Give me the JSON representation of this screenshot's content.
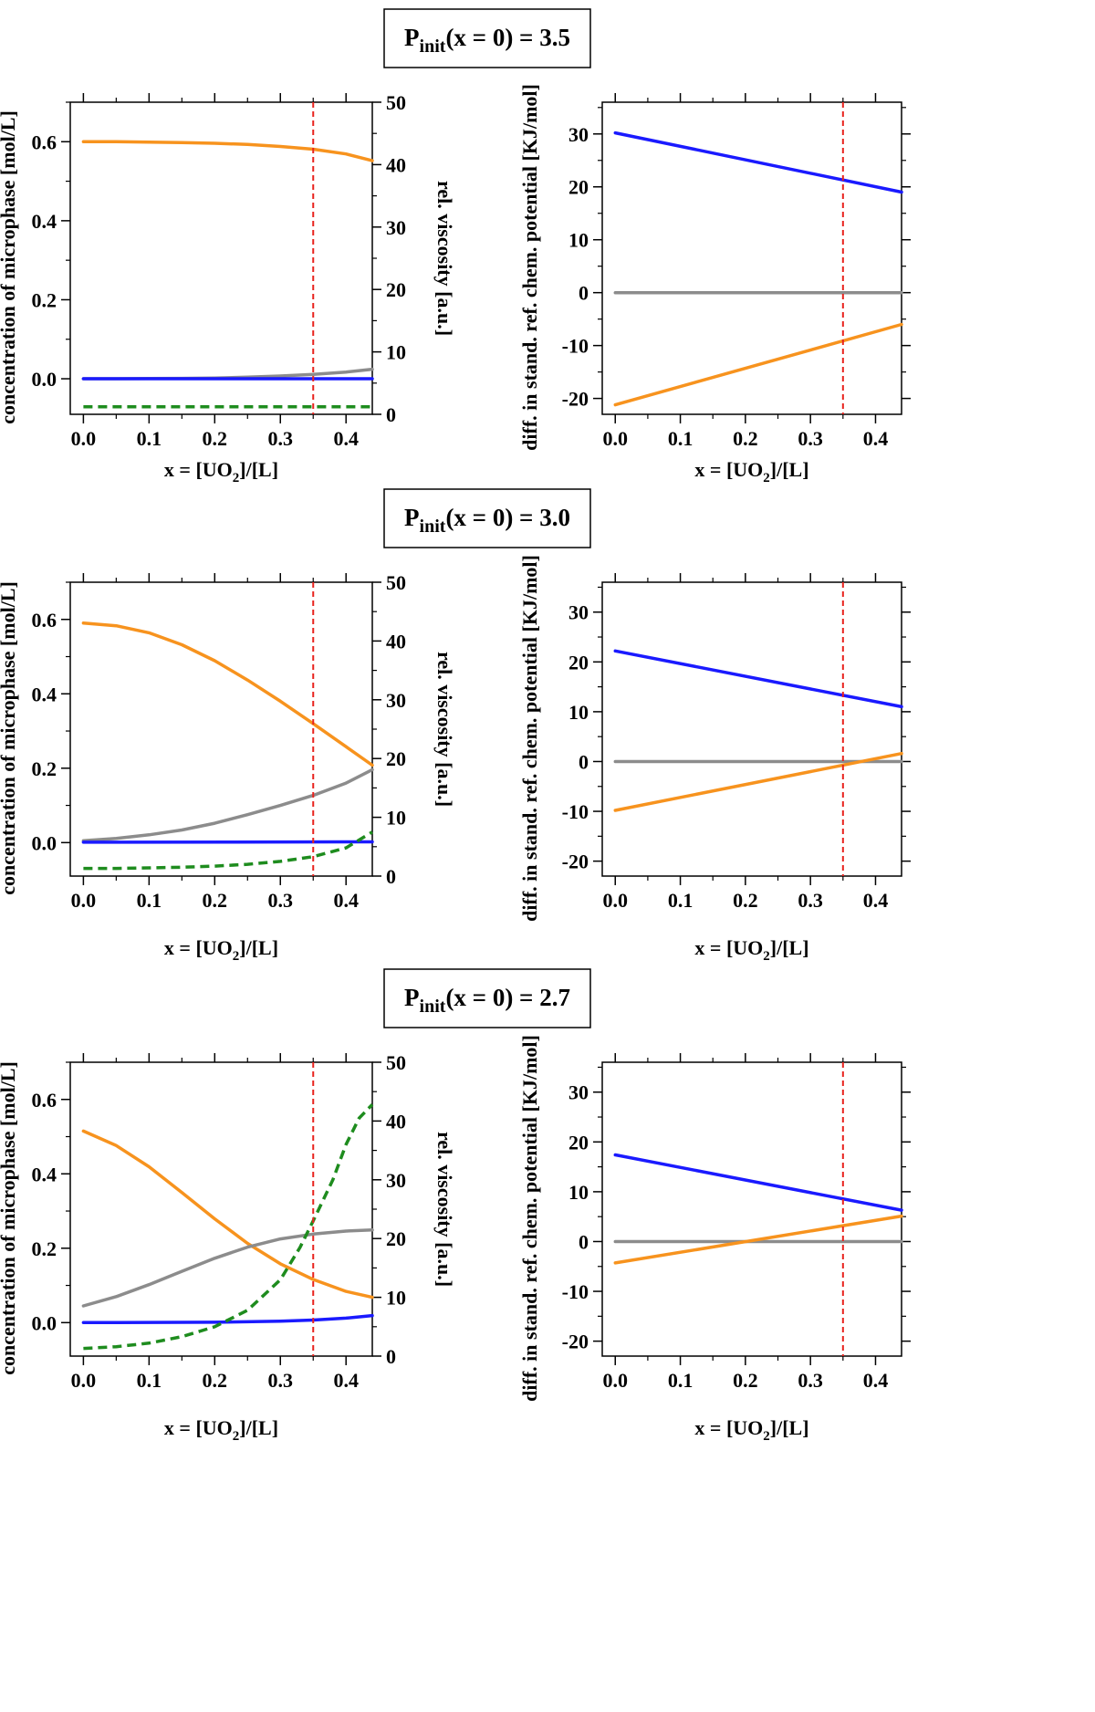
{
  "colors": {
    "orange": "#f7931e",
    "gray": "#8c8c8c",
    "blue": "#1a1aff",
    "green": "#1e8c1e",
    "red": "#e8231e"
  },
  "xlabel": {
    "main": "x = [UO",
    "sub": "2",
    "end": "]/[L]"
  },
  "chart_data": [
    {
      "type": "line",
      "panel_title": {
        "main": "P",
        "sub": "init",
        "rest": "(x = 0) = 3.5"
      },
      "conc": {
        "ylabel": "concentration of microphase [mol/L]",
        "ylim": [
          -0.09,
          0.7
        ],
        "yticks": [
          0.0,
          0.2,
          0.4,
          0.6
        ],
        "ylim_right": [
          0,
          50
        ],
        "yticks_right": [
          0,
          10,
          20,
          30,
          40,
          50
        ],
        "ylabel_right": "rel. viscosity [a.u.]",
        "xlim": [
          -0.02,
          0.44
        ],
        "xticks": [
          0.0,
          0.1,
          0.2,
          0.3,
          0.4
        ],
        "vline_x": 0.35,
        "series": [
          {
            "name": "orange",
            "axis": "left",
            "dashed": false,
            "x": [
              0,
              0.05,
              0.1,
              0.15,
              0.2,
              0.25,
              0.3,
              0.35,
              0.4,
              0.44
            ],
            "y": [
              0.6,
              0.6,
              0.599,
              0.598,
              0.596,
              0.593,
              0.588,
              0.581,
              0.569,
              0.552
            ]
          },
          {
            "name": "gray",
            "axis": "left",
            "dashed": false,
            "x": [
              0,
              0.05,
              0.1,
              0.15,
              0.2,
              0.25,
              0.3,
              0.35,
              0.4,
              0.44
            ],
            "y": [
              0.0,
              0.0,
              0.0005,
              0.001,
              0.002,
              0.004,
              0.007,
              0.011,
              0.017,
              0.024
            ]
          },
          {
            "name": "blue",
            "axis": "left",
            "dashed": false,
            "x": [
              0,
              0.44
            ],
            "y": [
              0.0,
              0.0
            ]
          },
          {
            "name": "green",
            "axis": "right",
            "dashed": true,
            "x": [
              0,
              0.44
            ],
            "y": [
              1.2,
              1.2
            ]
          }
        ]
      },
      "potential": {
        "ylabel": "diff. in stand. ref. chem. potential [KJ/mol]",
        "ylim": [
          -23,
          36
        ],
        "yticks": [
          -20,
          -10,
          0,
          10,
          20,
          30
        ],
        "xlim": [
          -0.02,
          0.44
        ],
        "xticks": [
          0.0,
          0.1,
          0.2,
          0.3,
          0.4
        ],
        "vline_x": 0.35,
        "series": [
          {
            "name": "blue",
            "x": [
              0,
              0.44
            ],
            "y": [
              30.2,
              19.0
            ]
          },
          {
            "name": "gray",
            "x": [
              0,
              0.44
            ],
            "y": [
              0,
              0
            ]
          },
          {
            "name": "orange",
            "x": [
              0,
              0.44
            ],
            "y": [
              -21.2,
              -6.0
            ]
          }
        ]
      }
    },
    {
      "type": "line",
      "panel_title": {
        "main": "P",
        "sub": "init",
        "rest": "(x = 0) = 3.0"
      },
      "conc": {
        "ylabel": "concentration of microphase [mol/L]",
        "ylim": [
          -0.09,
          0.7
        ],
        "yticks": [
          0.0,
          0.2,
          0.4,
          0.6
        ],
        "ylim_right": [
          0,
          50
        ],
        "yticks_right": [
          0,
          10,
          20,
          30,
          40,
          50
        ],
        "ylabel_right": "rel. viscosity [a.u.]",
        "xlim": [
          -0.02,
          0.44
        ],
        "xticks": [
          0.0,
          0.1,
          0.2,
          0.3,
          0.4
        ],
        "vline_x": 0.35,
        "series": [
          {
            "name": "orange",
            "axis": "left",
            "dashed": false,
            "x": [
              0,
              0.05,
              0.1,
              0.15,
              0.2,
              0.25,
              0.3,
              0.35,
              0.4,
              0.44
            ],
            "y": [
              0.59,
              0.583,
              0.564,
              0.532,
              0.489,
              0.437,
              0.38,
              0.32,
              0.258,
              0.208
            ]
          },
          {
            "name": "gray",
            "axis": "left",
            "dashed": false,
            "x": [
              0,
              0.05,
              0.1,
              0.15,
              0.2,
              0.25,
              0.3,
              0.35,
              0.4,
              0.44
            ],
            "y": [
              0.005,
              0.011,
              0.021,
              0.034,
              0.052,
              0.075,
              0.1,
              0.127,
              0.16,
              0.196
            ]
          },
          {
            "name": "blue",
            "axis": "left",
            "dashed": false,
            "x": [
              0,
              0.44
            ],
            "y": [
              0.001,
              0.002
            ]
          },
          {
            "name": "green",
            "axis": "right",
            "dashed": true,
            "x": [
              0,
              0.05,
              0.1,
              0.15,
              0.2,
              0.25,
              0.3,
              0.35,
              0.4,
              0.44
            ],
            "y": [
              1.3,
              1.3,
              1.4,
              1.5,
              1.7,
              2.0,
              2.5,
              3.3,
              4.8,
              7.5
            ]
          }
        ]
      },
      "potential": {
        "ylabel": "diff. in stand. ref. chem. potential [KJ/mol]",
        "ylim": [
          -23,
          36
        ],
        "yticks": [
          -20,
          -10,
          0,
          10,
          20,
          30
        ],
        "xlim": [
          -0.02,
          0.44
        ],
        "xticks": [
          0.0,
          0.1,
          0.2,
          0.3,
          0.4
        ],
        "vline_x": 0.35,
        "series": [
          {
            "name": "blue",
            "x": [
              0,
              0.44
            ],
            "y": [
              22.2,
              11.0
            ]
          },
          {
            "name": "gray",
            "x": [
              0,
              0.44
            ],
            "y": [
              0,
              0
            ]
          },
          {
            "name": "orange",
            "x": [
              0,
              0.44
            ],
            "y": [
              -9.8,
              1.6
            ]
          }
        ]
      }
    },
    {
      "type": "line",
      "panel_title": {
        "main": "P",
        "sub": "init",
        "rest": "(x = 0) = 2.7"
      },
      "conc": {
        "ylabel": "concentration of microphase [mol/L]",
        "ylim": [
          -0.09,
          0.7
        ],
        "yticks": [
          0.0,
          0.2,
          0.4,
          0.6
        ],
        "ylim_right": [
          0,
          50
        ],
        "yticks_right": [
          0,
          10,
          20,
          30,
          40,
          50
        ],
        "ylabel_right": "rel. viscosity [a.u.]",
        "xlim": [
          -0.02,
          0.44
        ],
        "xticks": [
          0.0,
          0.1,
          0.2,
          0.3,
          0.4
        ],
        "vline_x": 0.35,
        "series": [
          {
            "name": "orange",
            "axis": "left",
            "dashed": false,
            "x": [
              0,
              0.05,
              0.1,
              0.15,
              0.2,
              0.25,
              0.3,
              0.35,
              0.4,
              0.44
            ],
            "y": [
              0.515,
              0.476,
              0.419,
              0.35,
              0.279,
              0.213,
              0.158,
              0.116,
              0.084,
              0.068
            ]
          },
          {
            "name": "gray",
            "axis": "left",
            "dashed": false,
            "x": [
              0,
              0.05,
              0.1,
              0.15,
              0.2,
              0.25,
              0.3,
              0.35,
              0.4,
              0.44
            ],
            "y": [
              0.045,
              0.07,
              0.102,
              0.138,
              0.173,
              0.203,
              0.225,
              0.238,
              0.246,
              0.249
            ]
          },
          {
            "name": "blue",
            "axis": "left",
            "dashed": false,
            "x": [
              0,
              0.1,
              0.2,
              0.3,
              0.35,
              0.4,
              0.44
            ],
            "y": [
              0.0,
              0.0005,
              0.001,
              0.004,
              0.007,
              0.012,
              0.019
            ]
          },
          {
            "name": "green",
            "axis": "right",
            "dashed": true,
            "x": [
              0,
              0.05,
              0.1,
              0.15,
              0.2,
              0.25,
              0.3,
              0.33,
              0.35,
              0.38,
              0.4,
              0.42,
              0.44
            ],
            "y": [
              1.3,
              1.6,
              2.2,
              3.3,
              5.0,
              7.8,
              13.0,
              18.5,
              23.0,
              30.0,
              36.0,
              40.5,
              42.8
            ]
          }
        ]
      },
      "potential": {
        "ylabel": "diff. in stand. ref. chem. potential [KJ/mol]",
        "ylim": [
          -23,
          36
        ],
        "yticks": [
          -20,
          -10,
          0,
          10,
          20,
          30
        ],
        "xlim": [
          -0.02,
          0.44
        ],
        "xticks": [
          0.0,
          0.1,
          0.2,
          0.3,
          0.4
        ],
        "vline_x": 0.35,
        "series": [
          {
            "name": "blue",
            "x": [
              0,
              0.44
            ],
            "y": [
              17.4,
              6.3
            ]
          },
          {
            "name": "gray",
            "x": [
              0,
              0.44
            ],
            "y": [
              0,
              0
            ]
          },
          {
            "name": "orange",
            "x": [
              0,
              0.44
            ],
            "y": [
              -4.3,
              5.1
            ]
          }
        ]
      }
    }
  ]
}
